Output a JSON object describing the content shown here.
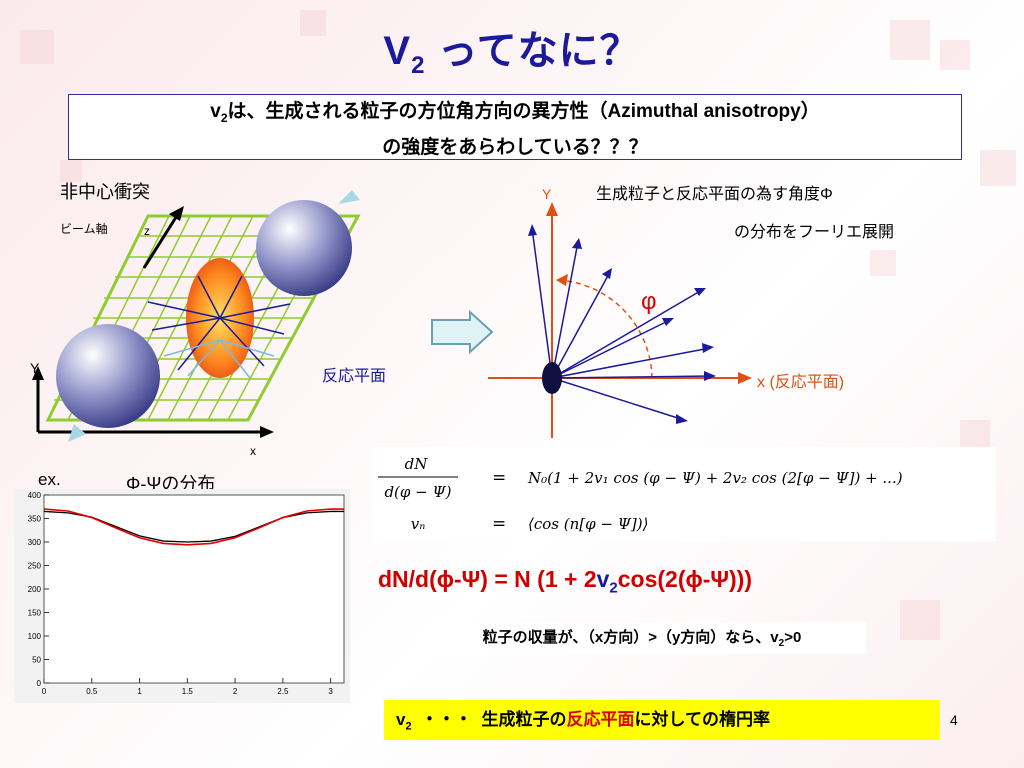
{
  "title": {
    "main": "V",
    "sub": "2",
    "rest": " ってなに？"
  },
  "definition": {
    "v": "v",
    "v_sub": "2",
    "line1_rest": "は、生成される粒子の方位角方向の異方性（Azimuthal anisotropy）",
    "line2": "の強度をあらわしている？？？"
  },
  "collision": {
    "heading": "非中心衝突",
    "beam_axis": "ビーム軸",
    "z_label": "z",
    "y_label": "Y",
    "x_label": "x",
    "reaction_plane": "反応平面"
  },
  "distribution": {
    "line1": "生成粒子と反応平面の為す角度Φ",
    "line2": "の分布をフーリエ展開",
    "y_axis": "Y",
    "x_axis": "x (反応平面)",
    "phi": "φ"
  },
  "example": {
    "prefix": "ex.",
    "title": "Φ-Ψの分布"
  },
  "histogram": {
    "y_ticks": [
      "400",
      "350",
      "300",
      "250",
      "200",
      "150",
      "100",
      "50",
      "0"
    ],
    "x_ticks": [
      "0",
      "0.5",
      "1",
      "1.5",
      "2",
      "2.5",
      "3"
    ]
  },
  "chart_data": {
    "type": "line",
    "title": "Φ-Ψの分布",
    "xlabel": "",
    "ylabel": "",
    "xlim": [
      0,
      3.14
    ],
    "ylim": [
      0,
      400
    ],
    "series": [
      {
        "color": "#000000",
        "x": [
          0,
          0.25,
          0.5,
          0.75,
          1.0,
          1.25,
          1.5,
          1.75,
          2.0,
          2.25,
          2.5,
          2.75,
          3.0,
          3.14
        ],
        "values": [
          365,
          362,
          353,
          333,
          313,
          302,
          300,
          302,
          312,
          332,
          352,
          362,
          365,
          365
        ]
      },
      {
        "color": "#e00000",
        "x": [
          0,
          0.25,
          0.5,
          0.75,
          1.0,
          1.25,
          1.5,
          1.75,
          2.0,
          2.25,
          2.5,
          2.75,
          3.0,
          3.14
        ],
        "values": [
          370,
          366,
          352,
          330,
          309,
          297,
          294,
          297,
          309,
          330,
          352,
          366,
          370,
          370
        ]
      }
    ]
  },
  "formula": {
    "lhs_num": "dN",
    "lhs_den": "d(φ − Ψ)",
    "eq": "=",
    "rhs1": "N₀(1 + 2v₁ cos (φ − Ψ) + 2v₂ cos (2[φ − Ψ]) + ...)",
    "lhs2": "vₙ",
    "rhs2": "⟨cos (n[φ − Ψ])⟩"
  },
  "red_formula": {
    "part1": "dN/d(",
    "phi1": "ϕ",
    "part2": "-Ψ) = N (1 + 2",
    "v": "v",
    "v_sub": "2",
    "part3": "cos(2(",
    "phi2": "ϕ",
    "part4": "-Ψ)))"
  },
  "note": {
    "text": "粒子の収量が、（x方向）>（y方向）なら、v",
    "sub": "2",
    "tail": ">0"
  },
  "summary": {
    "v": "v",
    "v_sub": "2",
    "dots": "・・・",
    "text1": "生成粒子の",
    "highlight": "反応平面",
    "text2": "に対しての楕円率"
  },
  "page_number": "4",
  "colors": {
    "title": "#1a1a9a",
    "red": "#d00000",
    "yellow": "#ffff00",
    "grid": "#8fcc2e"
  }
}
